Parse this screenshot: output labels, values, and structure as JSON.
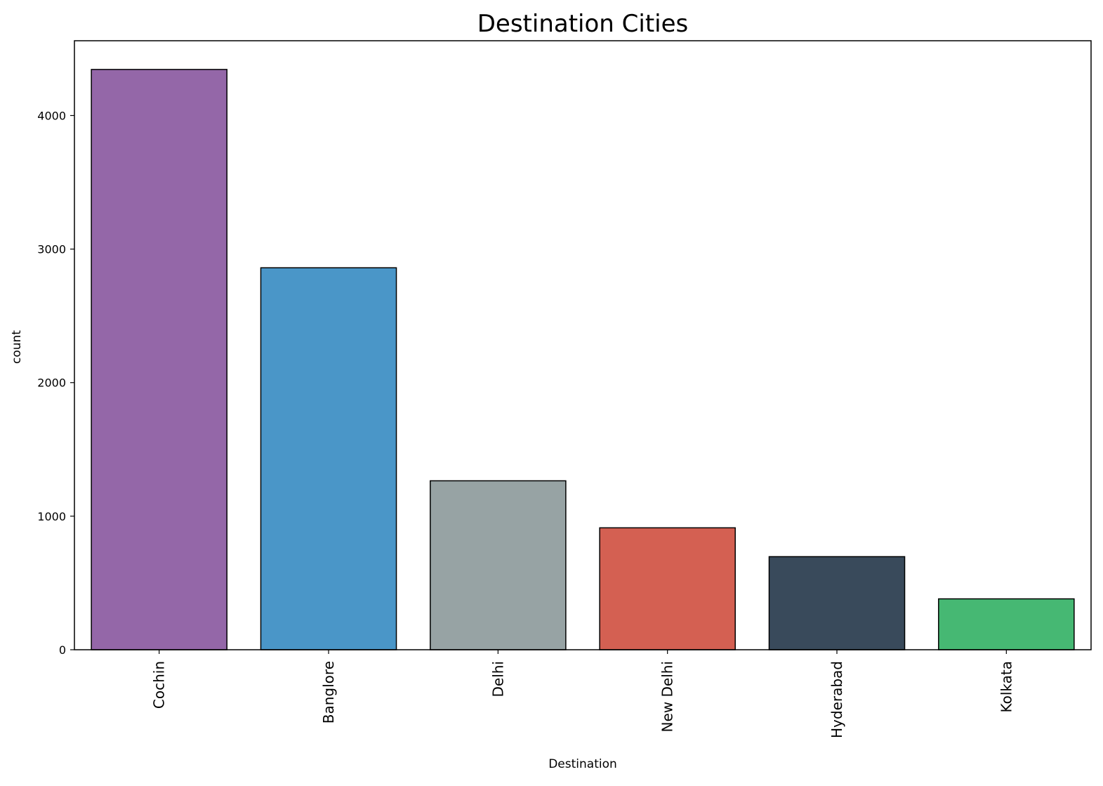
{
  "chart_data": {
    "type": "bar",
    "title": "Destination Cities",
    "xlabel": "Destination",
    "ylabel": "count",
    "categories": [
      "Cochin",
      "Banglore",
      "Delhi",
      "New Delhi",
      "Hyderabad",
      "Kolkata"
    ],
    "values": [
      4345,
      2860,
      1265,
      913,
      697,
      381
    ],
    "colors": [
      "#9467a8",
      "#4a96c8",
      "#97a3a4",
      "#d46052",
      "#394a5b",
      "#46b873"
    ],
    "edge_color": "#000000",
    "ylim": [
      0,
      4560
    ],
    "yticks": [
      0,
      1000,
      2000,
      3000,
      4000
    ],
    "ytick_labels": [
      "0",
      "1000",
      "2000",
      "3000",
      "4000"
    ],
    "xtick_rotation": "vertical",
    "grid": false,
    "legend": "none"
  }
}
